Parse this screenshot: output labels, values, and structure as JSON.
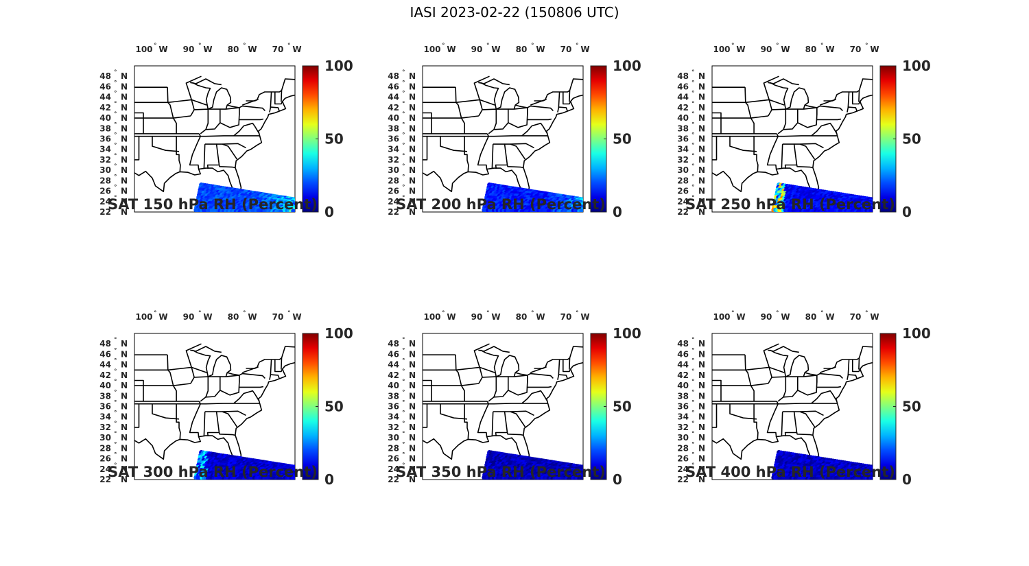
{
  "figure_title": "IASI 2023-02-22 (150806 UTC)",
  "map": {
    "lon_ticks": [
      {
        "label": "100",
        "suffix": "W",
        "lon": -100
      },
      {
        "label": "90",
        "suffix": "W",
        "lon": -90
      },
      {
        "label": "80",
        "suffix": "W",
        "lon": -80
      },
      {
        "label": "70",
        "suffix": "W",
        "lon": -70
      }
    ],
    "lat_ticks": [
      {
        "label": "48",
        "suffix": "N",
        "lat": 48
      },
      {
        "label": "46",
        "suffix": "N",
        "lat": 46
      },
      {
        "label": "44",
        "suffix": "N",
        "lat": 44
      },
      {
        "label": "42",
        "suffix": "N",
        "lat": 42
      },
      {
        "label": "40",
        "suffix": "N",
        "lat": 40
      },
      {
        "label": "38",
        "suffix": "N",
        "lat": 38
      },
      {
        "label": "36",
        "suffix": "N",
        "lat": 36
      },
      {
        "label": "34",
        "suffix": "N",
        "lat": 34
      },
      {
        "label": "32",
        "suffix": "N",
        "lat": 32
      },
      {
        "label": "30",
        "suffix": "N",
        "lat": 30
      },
      {
        "label": "28",
        "suffix": "N",
        "lat": 28
      },
      {
        "label": "26",
        "suffix": "N",
        "lat": 26
      },
      {
        "label": "24",
        "suffix": "N",
        "lat": 24
      },
      {
        "label": "22",
        "suffix": "N",
        "lat": 22
      }
    ],
    "lon_range": [
      -104,
      -68
    ],
    "lat_range": [
      22,
      50
    ],
    "region": "Eastern United States",
    "colormap": "jet",
    "colorbar_ticks": [
      "0",
      "50",
      "100"
    ],
    "colorbar_range": [
      0,
      100
    ]
  },
  "panels": [
    {
      "title": "SAT 150 hPa RH (Percent)",
      "rh_mean": 20,
      "rh_max": 45,
      "moist_zone": "east"
    },
    {
      "title": "SAT 200 hPa RH (Percent)",
      "rh_mean": 15,
      "rh_max": 35,
      "moist_zone": "east"
    },
    {
      "title": "SAT 250 hPa RH (Percent)",
      "rh_mean": 12,
      "rh_max": 75,
      "moist_zone": "west"
    },
    {
      "title": "SAT 300 hPa RH (Percent)",
      "rh_mean": 8,
      "rh_max": 40,
      "moist_zone": "west"
    },
    {
      "title": "SAT 350 hPa RH (Percent)",
      "rh_mean": 6,
      "rh_max": 15,
      "moist_zone": "none"
    },
    {
      "title": "SAT 400 hPa RH (Percent)",
      "rh_mean": 7,
      "rh_max": 18,
      "moist_zone": "none"
    }
  ]
}
